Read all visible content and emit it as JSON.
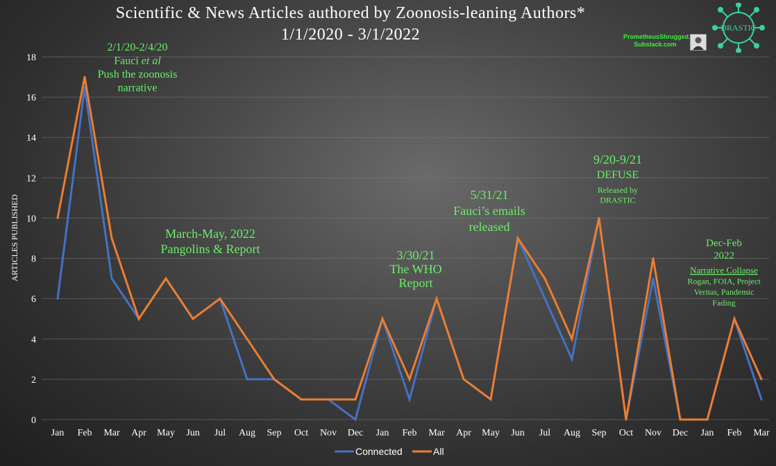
{
  "title": {
    "line1": "Scientific & News Articles authored by Zoonosis-leaning Authors*",
    "line2": "1/1/2020 - 3/1/2022"
  },
  "credit": {
    "line1": "PrometheusShrugged.",
    "line2": "Substack.com"
  },
  "logo": {
    "text": "DRASTIC"
  },
  "colors": {
    "connected": "#4472c4",
    "all": "#ed7d31",
    "annotation": "#69ef69"
  },
  "chart_data": {
    "type": "line",
    "ylabel": "ARTICLES PUBLISHED",
    "xlabel": "",
    "ylim": [
      0,
      18
    ],
    "yticks": [
      0,
      2,
      4,
      6,
      8,
      10,
      12,
      14,
      16,
      18
    ],
    "grid": true,
    "legend_position": "bottom-center",
    "categories": [
      "Jan",
      "Feb",
      "Mar",
      "Apr",
      "May",
      "Jun",
      "Jul",
      "Aug",
      "Sep",
      "Oct",
      "Nov",
      "Dec",
      "Jan",
      "Feb",
      "Mar",
      "Apr",
      "May",
      "Jun",
      "Jul",
      "Aug",
      "Sep",
      "Oct",
      "Nov",
      "Dec",
      "Jan",
      "Feb",
      "Mar"
    ],
    "series": [
      {
        "name": "Connected",
        "values": [
          6,
          16.5,
          7,
          5,
          7,
          5,
          6,
          2,
          2,
          1,
          1,
          0,
          5,
          1,
          6,
          2,
          1,
          9,
          6,
          3,
          10,
          0,
          7,
          0,
          0,
          5,
          1
        ]
      },
      {
        "name": "All",
        "values": [
          10,
          17,
          9,
          5,
          7,
          5,
          6,
          4,
          2,
          1,
          1,
          1,
          5,
          2,
          6,
          2,
          1,
          9,
          7,
          4,
          10,
          0,
          8,
          0,
          0,
          5,
          2
        ]
      }
    ],
    "annotations": [
      {
        "lines": [
          "2/1/20-2/4/20",
          "Fauci et al",
          "Push the zoonosis",
          "narrative"
        ]
      },
      {
        "lines": [
          "March-May, 2022",
          "Pangolins &  Report"
        ]
      },
      {
        "lines": [
          "3/30/21",
          "The WHO",
          "Report"
        ]
      },
      {
        "lines": [
          "5/31/21",
          "Fauci’s emails",
          "released"
        ]
      },
      {
        "lines": [
          "9/20-9/21",
          "DEFUSE"
        ]
      },
      {
        "lines": [
          "Released by",
          "DRASTIC"
        ]
      },
      {
        "lines": [
          "Dec-Feb",
          "2022"
        ]
      },
      {
        "lines": [
          "Narrative Collapse",
          "Rogan, FOIA, Project",
          "Veritas, Pandemic",
          "Fading"
        ]
      }
    ]
  }
}
